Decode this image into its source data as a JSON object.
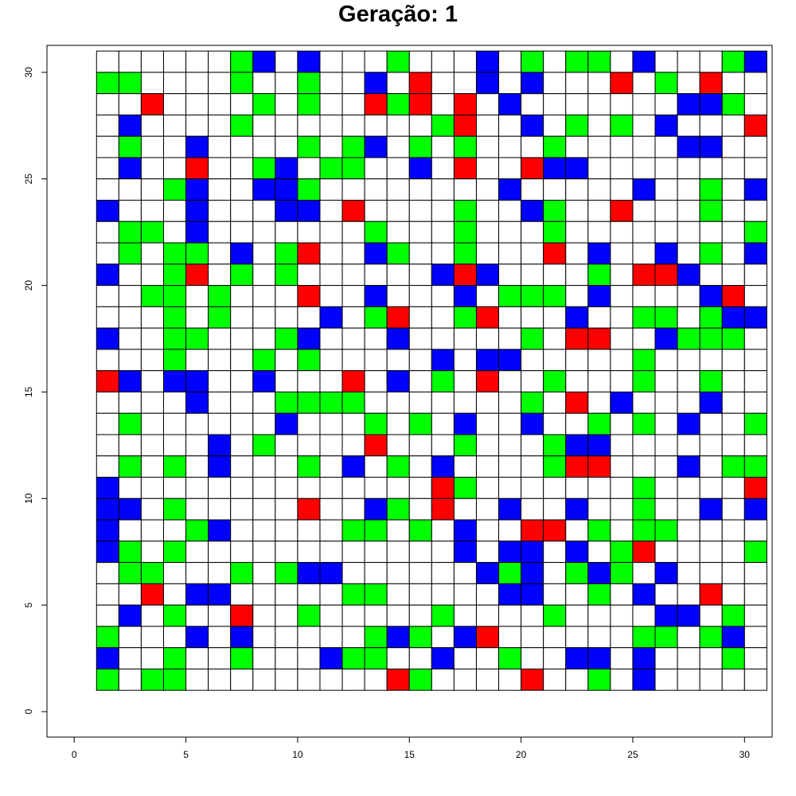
{
  "chart_data": {
    "type": "heatmap",
    "title": "Geração: 1",
    "xlabel": "",
    "ylabel": "",
    "xlim": [
      -1.2,
      31.2
    ],
    "ylim": [
      -1.2,
      31.2
    ],
    "x_ticks": [
      0,
      5,
      10,
      15,
      20,
      25,
      30
    ],
    "y_ticks": [
      0,
      5,
      10,
      15,
      20,
      25,
      30
    ],
    "x_tick_labels": [
      "0",
      "5",
      "10",
      "15",
      "20",
      "25",
      "30"
    ],
    "y_tick_labels": [
      "0",
      "5",
      "10",
      "15",
      "20",
      "25",
      "30"
    ],
    "grid_cols": 30,
    "grid_rows": 30,
    "legend": {
      "0": "empty",
      "1": "green",
      "2": "blue",
      "3": "red"
    },
    "colors": {
      "0": "#ffffff",
      "1": "#00ff00",
      "2": "#0000ff",
      "3": "#ff0000",
      "border": "#000000",
      "frame": "#000000"
    },
    "row_order": "top-to-bottom (y=30 first, y=1 last); column x=1..30 left to right",
    "rows": [
      "000000120200010002010110200012",
      "110000100100203002020003010300",
      "003000010100313030200000002210",
      "020000100000000130020101020003",
      "010020000101201010001000002200",
      "020030012011002030032200000000",
      "000120022100000000200000200102",
      "200020002203000010021003000100",
      "011020000000100010001000000001",
      "010110201300210010003020020102",
      "200130101000000232000010332000",
      "001101000300200020111020000230",
      "000101000020130013000200110122",
      "200110001200020000010330021110",
      "000100010100000202200000100000",
      "320220020003020103001000100100",
      "000020001111000000010302000200",
      "010000002000101020020010102001",
      "000002010000300010001220000000",
      "010102000102010200001330002011",
      "200000000000000310000000100003",
      "220100000300210300200200100202",
      "200012000001101020033010110000",
      "210100000000000020220201300001",
      "011000101220000002120121020000",
      "003022000001100000220010200300",
      "020100300100000100001000022010",
      "100020200000121023000000110120",
      "200100100021100200100220200010",
      "101100000000031000030010200000"
    ]
  }
}
